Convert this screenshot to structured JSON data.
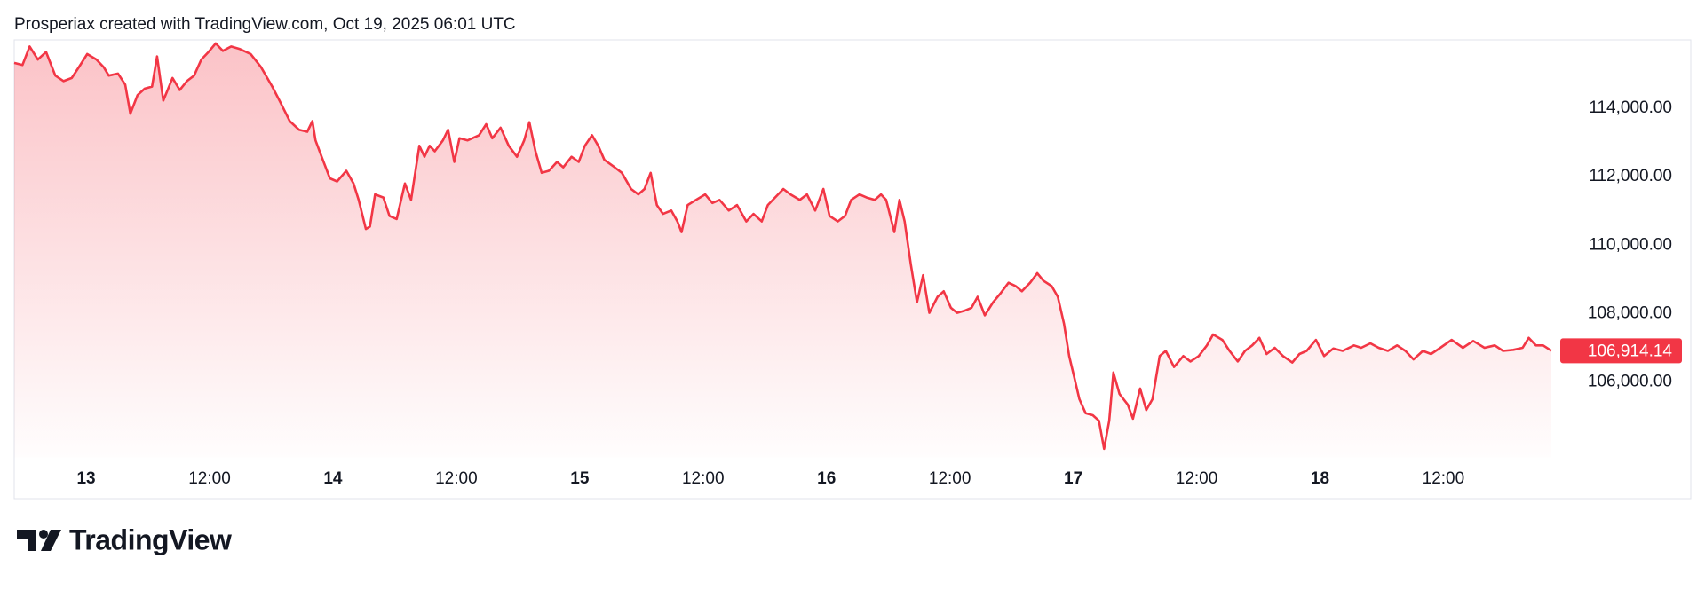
{
  "header": {
    "credit": "Prosperiax created with TradingView.com, Oct 19, 2025 06:01 UTC"
  },
  "footer": {
    "brand": "TradingView"
  },
  "chart_data": {
    "type": "area",
    "color": "#f23645",
    "grid": false,
    "x": [
      -7.0,
      -6.2,
      -5.5,
      -4.7,
      -3.9,
      -3.0,
      -2.2,
      -1.4,
      -0.7,
      0.1,
      1.0,
      1.7,
      2.2,
      3.1,
      3.8,
      4.3,
      5.0,
      5.7,
      6.4,
      6.9,
      7.5,
      8.4,
      9.1,
      9.8,
      10.5,
      11.2,
      11.9,
      12.6,
      13.3,
      14.1,
      14.9,
      16.0,
      17.0,
      18.1,
      18.9,
      19.8,
      20.7,
      21.5,
      22.0,
      22.3,
      22.9,
      23.7,
      24.4,
      25.3,
      26.0,
      26.5,
      27.2,
      27.6,
      28.1,
      28.9,
      29.5,
      30.2,
      31.0,
      31.6,
      32.4,
      32.9,
      33.4,
      33.9,
      34.7,
      35.2,
      35.8,
      36.3,
      37.1,
      38.2,
      38.9,
      39.5,
      40.3,
      41.1,
      41.9,
      42.6,
      43.1,
      43.7,
      44.3,
      45.0,
      45.8,
      46.4,
      47.2,
      47.9,
      48.5,
      49.2,
      49.8,
      50.4,
      51.4,
      52.1,
      53.0,
      53.7,
      54.3,
      54.9,
      55.5,
      56.1,
      56.9,
      57.5,
      57.9,
      58.5,
      59.3,
      60.2,
      60.9,
      61.6,
      62.5,
      63.3,
      64.2,
      64.9,
      65.7,
      66.3,
      67.0,
      67.8,
      68.5,
      69.4,
      70.1,
      70.9,
      71.7,
      72.3,
      73.1,
      73.8,
      74.4,
      75.2,
      75.9,
      76.7,
      77.3,
      77.8,
      78.6,
      79.1,
      79.6,
      80.2,
      80.8,
      81.4,
      82.0,
      82.8,
      83.4,
      84.1,
      84.7,
      85.4,
      86.1,
      86.7,
      87.4,
      88.2,
      88.9,
      89.7,
      90.4,
      91.0,
      91.8,
      92.5,
      93.1,
      93.9,
      94.5,
      95.1,
      95.6,
      96.1,
      96.6,
      97.2,
      97.9,
      98.5,
      99.0,
      99.5,
      99.9,
      100.5,
      101.3,
      101.8,
      102.5,
      103.1,
      103.7,
      104.4,
      105.0,
      105.8,
      106.7,
      107.4,
      108.2,
      109.0,
      109.6,
      110.5,
      111.2,
      112.0,
      112.7,
      113.4,
      114.1,
      114.8,
      115.6,
      116.4,
      117.3,
      118.0,
      118.7,
      119.6,
      120.4,
      121.3,
      122.2,
      123.3,
      124.0,
      124.9,
      125.7,
      126.6,
      127.5,
      128.3,
      129.1,
      130.0,
      130.8,
      131.7,
      132.8,
      133.9,
      134.9,
      136.0,
      137.0,
      137.8,
      138.8,
      139.7,
      140.3,
      141.0,
      141.7,
      142.5
    ],
    "values": [
      115320,
      115260,
      115800,
      115420,
      115640,
      114950,
      114790,
      114880,
      115200,
      115580,
      115420,
      115200,
      114950,
      115010,
      114690,
      113840,
      114380,
      114570,
      114630,
      115510,
      114220,
      114880,
      114530,
      114790,
      114950,
      115420,
      115640,
      115890,
      115670,
      115800,
      115730,
      115580,
      115200,
      114630,
      114160,
      113620,
      113370,
      113310,
      113620,
      113060,
      112580,
      111950,
      111860,
      112170,
      111800,
      111320,
      110470,
      110540,
      111480,
      111390,
      110850,
      110760,
      111800,
      111320,
      112900,
      112580,
      112900,
      112740,
      113060,
      113370,
      112430,
      113120,
      113060,
      113210,
      113530,
      113120,
      113430,
      112900,
      112580,
      113060,
      113590,
      112740,
      112110,
      112170,
      112430,
      112270,
      112580,
      112430,
      112900,
      113210,
      112900,
      112490,
      112270,
      112110,
      111640,
      111480,
      111640,
      112110,
      111170,
      110910,
      111010,
      110690,
      110380,
      111170,
      111320,
      111480,
      111230,
      111320,
      111010,
      111170,
      110690,
      110910,
      110690,
      111170,
      111390,
      111640,
      111480,
      111320,
      111480,
      111010,
      111640,
      110850,
      110690,
      110850,
      111320,
      111480,
      111390,
      111320,
      111480,
      111320,
      110380,
      111320,
      110690,
      109430,
      108330,
      109120,
      108020,
      108490,
      108650,
      108170,
      108020,
      108080,
      108170,
      108490,
      107950,
      108330,
      108580,
      108900,
      108800,
      108650,
      108900,
      109180,
      108960,
      108800,
      108490,
      107700,
      106760,
      106130,
      105500,
      105090,
      105030,
      104870,
      104050,
      104870,
      106280,
      105650,
      105340,
      104930,
      105810,
      105180,
      105500,
      106760,
      106910,
      106440,
      106760,
      106600,
      106760,
      107070,
      107390,
      107230,
      106910,
      106600,
      106910,
      107070,
      107290,
      106820,
      107000,
      106760,
      106570,
      106820,
      106910,
      107230,
      106760,
      106980,
      106910,
      107070,
      107000,
      107130,
      107000,
      106910,
      107070,
      106910,
      106660,
      106910,
      106820,
      107000,
      107230,
      107000,
      107200,
      107000,
      107070,
      106910,
      106940,
      107000,
      107290,
      107070,
      107070,
      106914.14
    ],
    "last_price": {
      "value": 106914.14,
      "label": "106,914.14"
    },
    "xlim": [
      -7,
      142.5
    ],
    "xticks": [
      {
        "value": 0,
        "label": "13"
      },
      {
        "value": 12,
        "label": "12:00"
      },
      {
        "value": 24,
        "label": "14"
      },
      {
        "value": 36,
        "label": "12:00"
      },
      {
        "value": 48,
        "label": "15"
      },
      {
        "value": 60,
        "label": "12:00"
      },
      {
        "value": 72,
        "label": "16"
      },
      {
        "value": 84,
        "label": "12:00"
      },
      {
        "value": 96,
        "label": "17"
      },
      {
        "value": 108,
        "label": "12:00"
      },
      {
        "value": 120,
        "label": "18"
      },
      {
        "value": 132,
        "label": "12:00"
      }
    ],
    "ylim": [
      103800,
      116000
    ],
    "yticks": [
      {
        "value": 106000,
        "label": "106,000.00"
      },
      {
        "value": 108000,
        "label": "108,000.00"
      },
      {
        "value": 110000,
        "label": "110,000.00"
      },
      {
        "value": 112000,
        "label": "112,000.00"
      },
      {
        "value": 114000,
        "label": "114,000.00"
      }
    ]
  }
}
